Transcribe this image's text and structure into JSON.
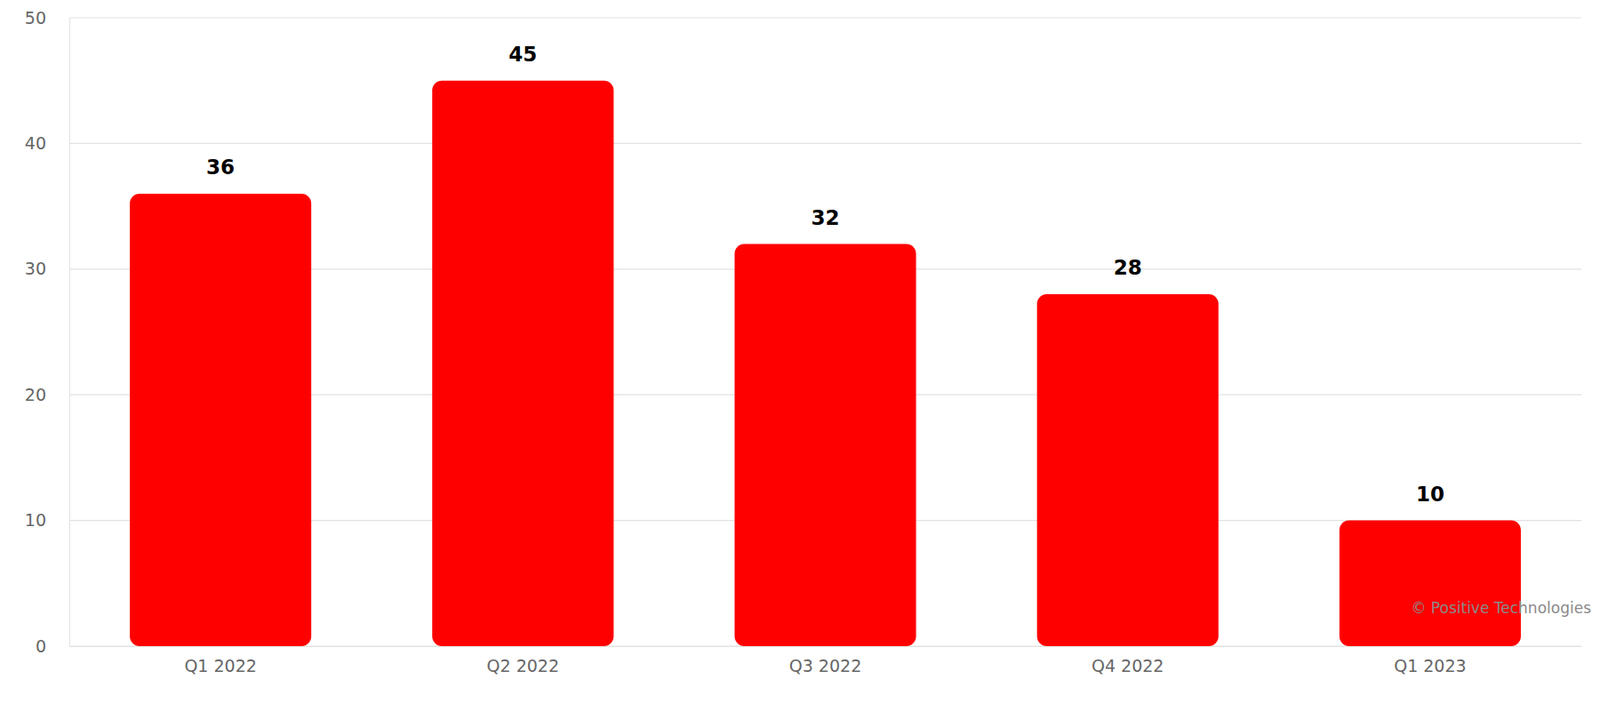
{
  "chart_data": {
    "type": "bar",
    "categories": [
      "Q1 2022",
      "Q2 2022",
      "Q3 2022",
      "Q4 2022",
      "Q1 2023"
    ],
    "values": [
      36,
      45,
      32,
      28,
      10
    ],
    "color": "#ff0000",
    "ylim": [
      0,
      50
    ],
    "yticks": [
      0,
      10,
      20,
      30,
      40,
      50
    ],
    "grid": true,
    "data_labels": true,
    "annotations": [
      "© Positive Technologies"
    ]
  }
}
